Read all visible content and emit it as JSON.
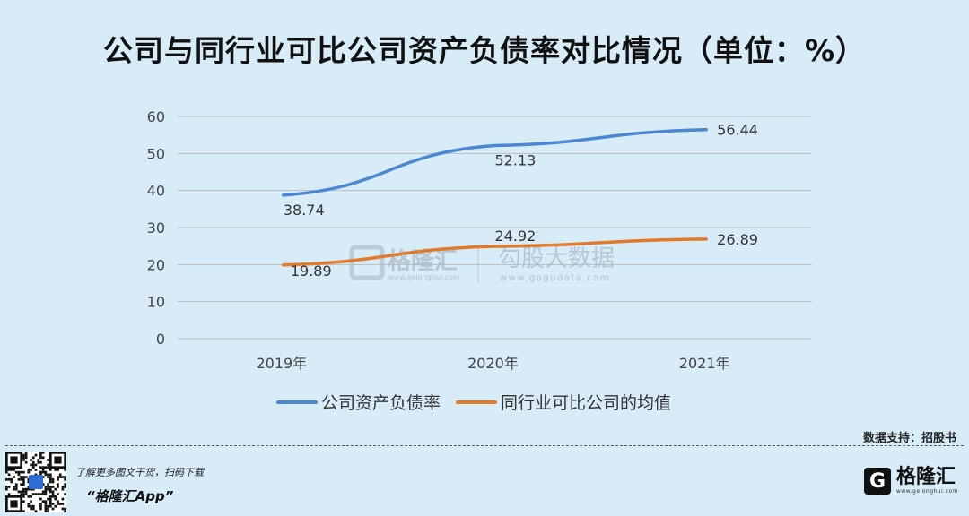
{
  "title": "公司与同行业可比公司资产负债率对比情况（单位：%）",
  "source": "数据支持：招股书",
  "promo": {
    "line1": "了解更多图文干货，扫码下载",
    "line2": "“格隆汇App”"
  },
  "brand": {
    "name": "格隆汇",
    "sub": "www.gelonghui.com",
    "icon": "G"
  },
  "watermark": {
    "left": "格隆汇",
    "left_sub": "www.gelonghui.com",
    "right": "勾股大数据",
    "right_sub": "www.gogudata.com"
  },
  "chart_data": {
    "type": "line",
    "categories": [
      "2019年",
      "2020年",
      "2021年"
    ],
    "series": [
      {
        "name": "公司资产负债率",
        "values": [
          38.74,
          52.13,
          56.44
        ],
        "color": "#4a88d4"
      },
      {
        "name": "同行业可比公司的均值",
        "values": [
          19.89,
          24.92,
          26.89
        ],
        "color": "#e07a2c"
      }
    ],
    "ylim": [
      0,
      60
    ],
    "yticks": [
      0,
      10,
      20,
      30,
      40,
      50,
      60
    ],
    "grid": true,
    "legend": "bottom"
  }
}
